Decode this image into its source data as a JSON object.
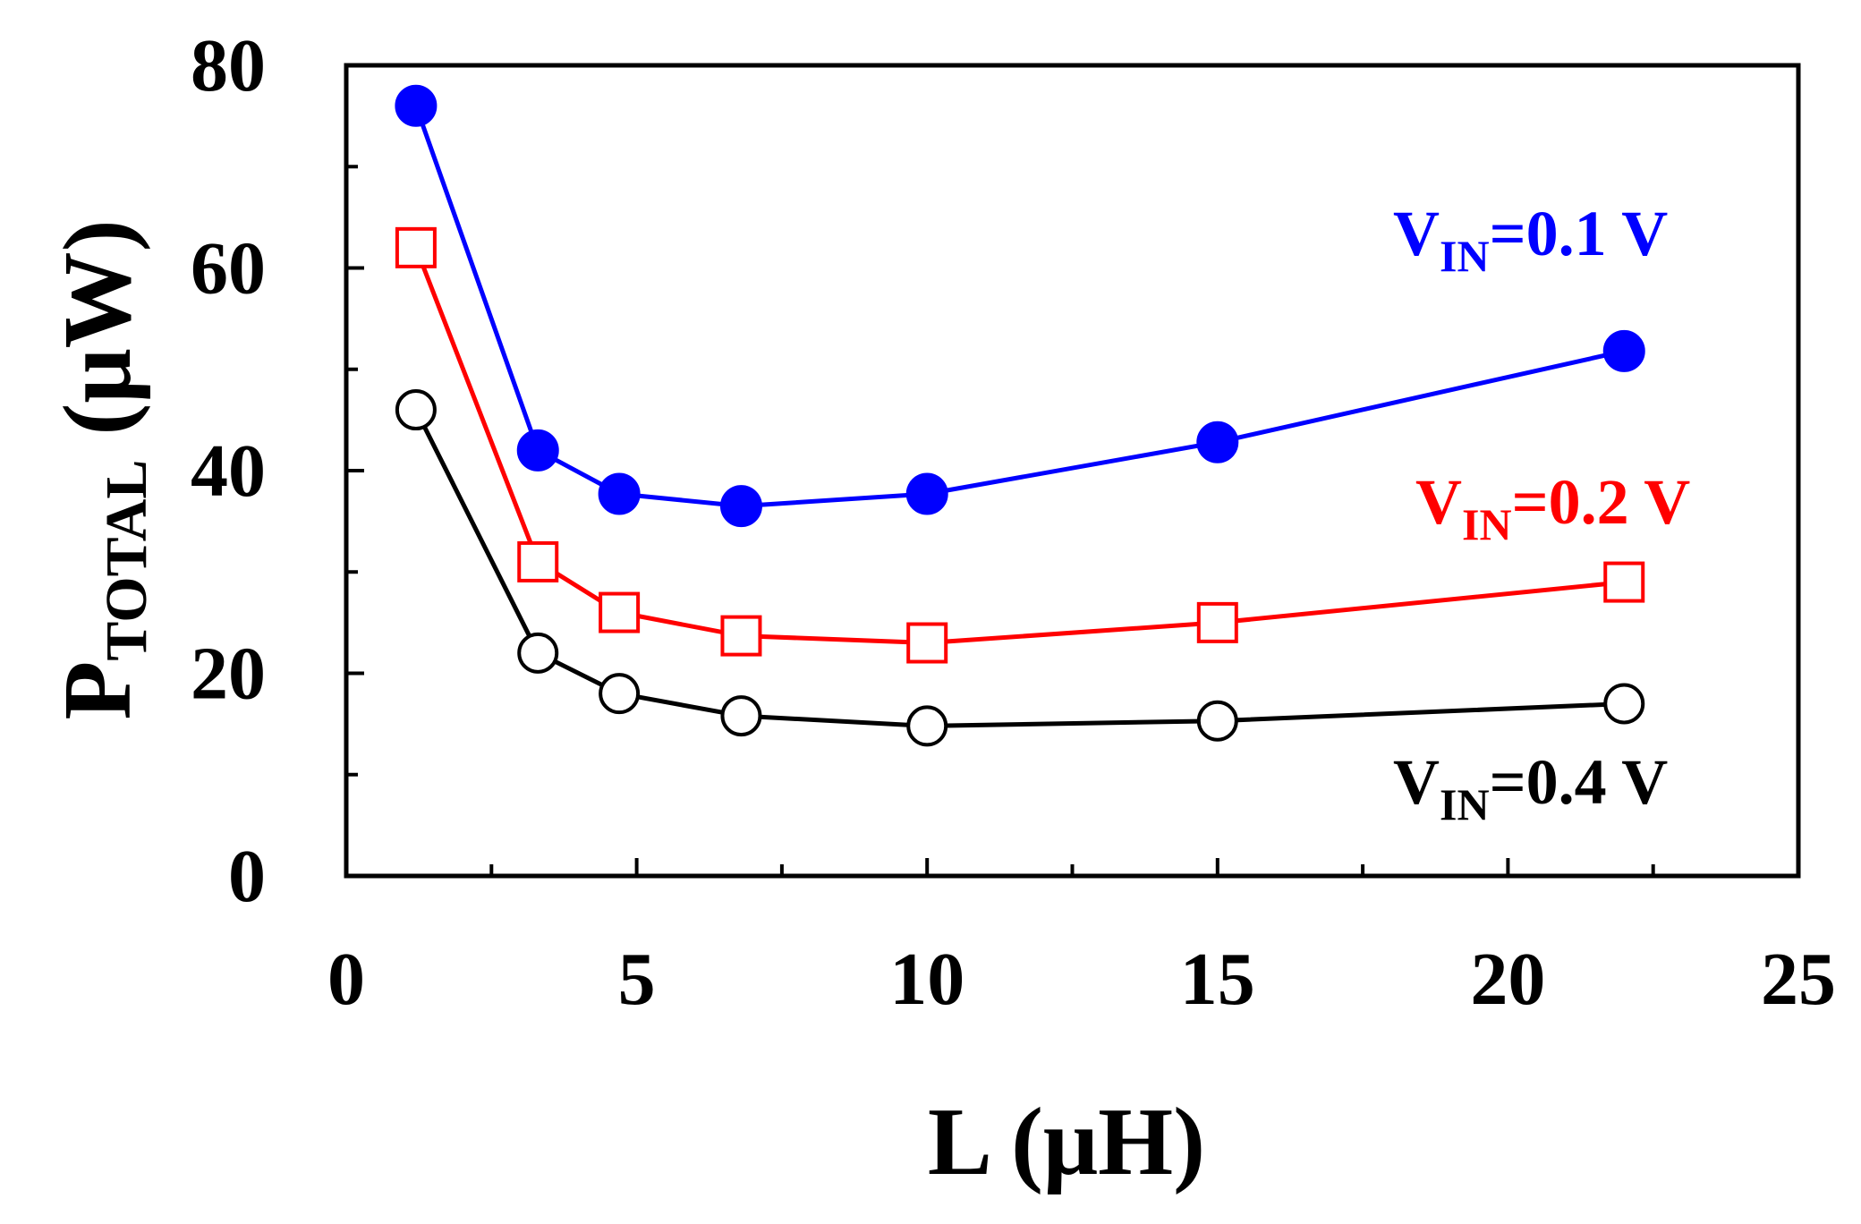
{
  "chart_data": {
    "type": "line",
    "title": "",
    "xlabel": "L (μH)",
    "ylabel": {
      "main": "P",
      "sub": "TOTAL",
      "units": " (μW)"
    },
    "xlim": [
      0,
      25
    ],
    "ylim": [
      0,
      80
    ],
    "x_major_ticks": [
      0,
      5,
      10,
      15,
      20,
      25
    ],
    "x_minor_ticks": [
      2.5,
      7.5,
      12.5,
      17.5,
      22.5
    ],
    "y_major_ticks": [
      0,
      20,
      40,
      60,
      80
    ],
    "y_minor_ticks": [
      10,
      30,
      50,
      70
    ],
    "x_tick_labels": [
      "0",
      "5",
      "10",
      "15",
      "20",
      "25"
    ],
    "y_tick_labels": [
      "0",
      "20",
      "40",
      "60",
      "80"
    ],
    "grid": false,
    "series": [
      {
        "name": "VIN=0.1 V",
        "label_main": "V",
        "label_sub": "IN",
        "label_value": "=0.1 V",
        "color": "#0000ff",
        "marker": "filled-circle",
        "x": [
          1.2,
          3.3,
          4.7,
          6.8,
          10,
          15,
          22
        ],
        "y": [
          76,
          42,
          37.7,
          36.5,
          37.7,
          42.8,
          51.8
        ]
      },
      {
        "name": "VIN=0.2 V",
        "label_main": "V",
        "label_sub": "IN",
        "label_value": "=0.2 V",
        "color": "#ff0000",
        "marker": "open-square",
        "x": [
          1.2,
          3.3,
          4.7,
          6.8,
          10,
          15,
          22
        ],
        "y": [
          62,
          31,
          26,
          23.7,
          23,
          25,
          29
        ]
      },
      {
        "name": "VIN=0.4 V",
        "label_main": "V",
        "label_sub": "IN",
        "label_value": "=0.4 V",
        "color": "#000000",
        "marker": "open-circle",
        "x": [
          1.2,
          3.3,
          4.7,
          6.8,
          10,
          15,
          22
        ],
        "y": [
          46,
          22,
          18,
          15.8,
          14.8,
          15.3,
          17
        ]
      }
    ]
  }
}
